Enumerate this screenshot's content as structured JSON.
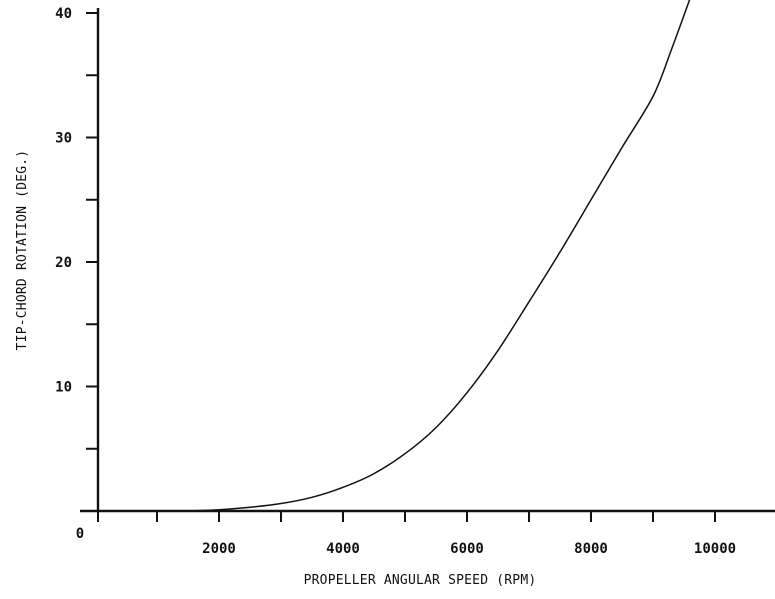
{
  "chart_data": {
    "type": "line",
    "title": "",
    "xlabel": "PROPELLER ANGULAR SPEED (RPM)",
    "ylabel": "TIP-CHORD ROTATION (DEG.)",
    "xlim": [
      0,
      11000
    ],
    "ylim": [
      0,
      40
    ],
    "x_tick_labels": [
      {
        "value": 2000,
        "label": "2000"
      },
      {
        "value": 4000,
        "label": "4000"
      },
      {
        "value": 6000,
        "label": "6000"
      },
      {
        "value": 8000,
        "label": "8000"
      },
      {
        "value": 10000,
        "label": "10000"
      }
    ],
    "x_minor_ticks": [
      1000,
      3000,
      5000,
      7000,
      9000,
      11000
    ],
    "y_tick_labels": [
      {
        "value": 10,
        "label": "10"
      },
      {
        "value": 20,
        "label": "20"
      },
      {
        "value": 30,
        "label": "30"
      },
      {
        "value": 40,
        "label": "40"
      }
    ],
    "y_minor_ticks": [
      5,
      15,
      25,
      35
    ],
    "origin_label": "0",
    "grid": false,
    "series": [
      {
        "x": [
          1500,
          2000,
          2500,
          3000,
          3500,
          4000,
          4500,
          5000,
          5500,
          6000,
          6500,
          7000,
          7500,
          8000,
          8500,
          9000,
          9300,
          9600
        ],
        "y": [
          0,
          0.1,
          0.3,
          0.6,
          1.1,
          1.9,
          3.0,
          4.6,
          6.7,
          9.5,
          12.9,
          16.8,
          20.8,
          25.0,
          29.2,
          33.3,
          37.1,
          41.2
        ]
      }
    ]
  }
}
